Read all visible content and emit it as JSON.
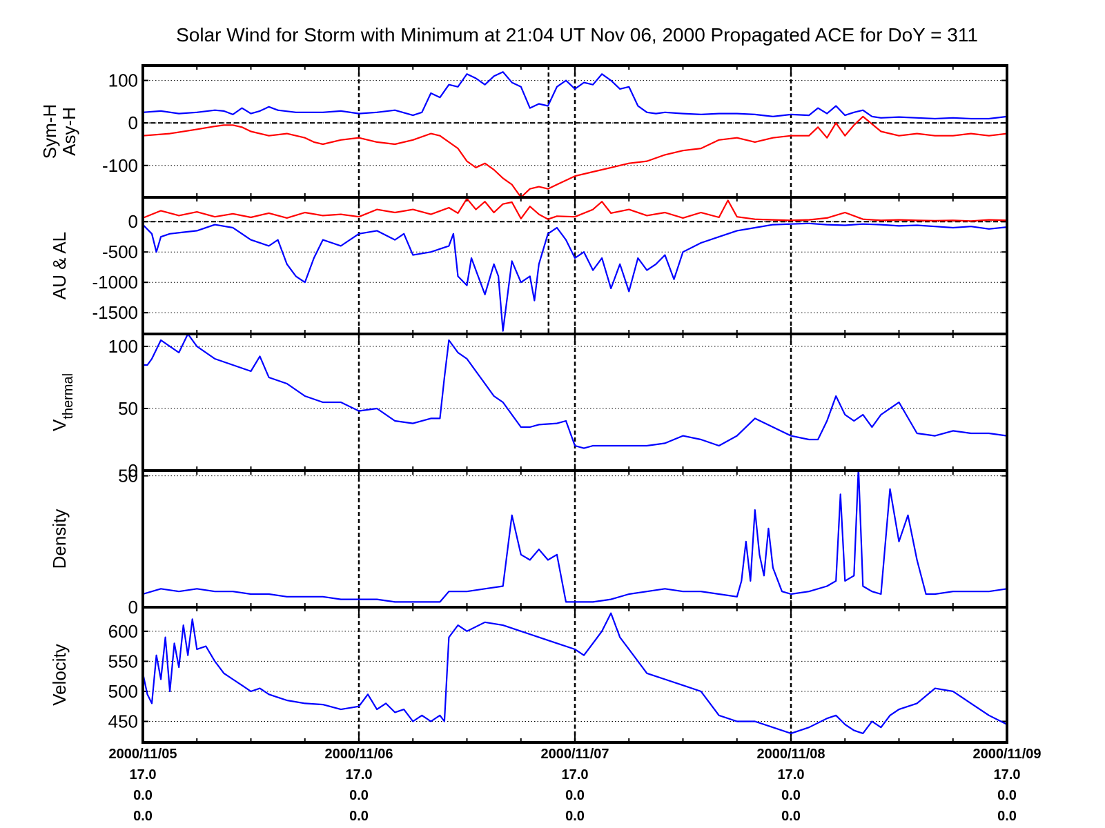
{
  "title": "Solar Wind for Storm with Minimum at 21:04 UT Nov 06, 2000  Propagated ACE for DoY = 311",
  "colors": {
    "blue": "#0000ff",
    "red": "#ff0000",
    "axis": "#000000"
  },
  "x_axis": {
    "range": [
      "2000/11/05 00:00",
      "2000/11/09 00:00"
    ],
    "tick_labels": [
      [
        "2000/11/05",
        "17.0",
        "0.0",
        "0.0"
      ],
      [
        "2000/11/06",
        "17.0",
        "0.0",
        "0.0"
      ],
      [
        "2000/11/07",
        "17.0",
        "0.0",
        "0.0"
      ],
      [
        "2000/11/08",
        "17.0",
        "0.0",
        "0.0"
      ],
      [
        "2000/11/09",
        "17.0",
        "0.0",
        "0.0"
      ]
    ],
    "storm_minimum_time": "2000/11/06 21:04"
  },
  "chart_data": [
    {
      "type": "line",
      "ylabel": [
        "Sym-H",
        "Asy-H"
      ],
      "ylim": [
        -175,
        135
      ],
      "yticks": [
        100,
        0,
        -100
      ],
      "ytick_labels": [
        "100",
        "0",
        "-100"
      ],
      "zero_line": true,
      "storm_marker": true,
      "x_unit": "hours since 2000/11/05 00:00",
      "series": [
        {
          "color": "#0000ff",
          "x": [
            0,
            2,
            4,
            6,
            8,
            9,
            10,
            11,
            12,
            13,
            14,
            15,
            17,
            20,
            22,
            24,
            26,
            28,
            30,
            31,
            32,
            33,
            34,
            35,
            36,
            37,
            38,
            39,
            40,
            41,
            42,
            43,
            44,
            45,
            46,
            47,
            48,
            49,
            50,
            51,
            52,
            53,
            54,
            55,
            56,
            57,
            58,
            60,
            62,
            64,
            66,
            68,
            70,
            72,
            74,
            75,
            76,
            77,
            78,
            79,
            80,
            81,
            82,
            84,
            86,
            88,
            90,
            92,
            94,
            96
          ],
          "values": [
            25,
            28,
            22,
            25,
            30,
            28,
            20,
            35,
            22,
            28,
            38,
            30,
            25,
            25,
            28,
            22,
            25,
            30,
            18,
            25,
            70,
            60,
            90,
            85,
            115,
            105,
            90,
            110,
            120,
            95,
            85,
            35,
            45,
            40,
            85,
            100,
            80,
            95,
            90,
            115,
            100,
            80,
            85,
            40,
            25,
            22,
            25,
            22,
            20,
            22,
            22,
            20,
            15,
            20,
            18,
            35,
            22,
            40,
            18,
            25,
            30,
            15,
            12,
            14,
            12,
            10,
            12,
            10,
            10,
            15
          ]
        },
        {
          "color": "#ff0000",
          "x": [
            0,
            3,
            6,
            8,
            9,
            10,
            11,
            12,
            14,
            16,
            18,
            19,
            20,
            22,
            24,
            26,
            28,
            30,
            32,
            33,
            34,
            35,
            36,
            37,
            38,
            39,
            40,
            41,
            42,
            43,
            44,
            45,
            46,
            48,
            50,
            52,
            54,
            56,
            58,
            60,
            62,
            64,
            66,
            68,
            70,
            72,
            74,
            75,
            76,
            77,
            78,
            79,
            80,
            82,
            84,
            86,
            88,
            90,
            92,
            94,
            96
          ],
          "values": [
            -30,
            -25,
            -15,
            -8,
            -5,
            -5,
            -10,
            -20,
            -30,
            -25,
            -35,
            -45,
            -50,
            -40,
            -35,
            -45,
            -50,
            -40,
            -25,
            -30,
            -45,
            -60,
            -90,
            -105,
            -95,
            -110,
            -130,
            -145,
            -175,
            -155,
            -150,
            -155,
            -145,
            -125,
            -115,
            -105,
            -95,
            -90,
            -75,
            -65,
            -60,
            -40,
            -35,
            -45,
            -35,
            -30,
            -30,
            -10,
            -35,
            0,
            -30,
            -5,
            15,
            -20,
            -30,
            -25,
            -30,
            -30,
            -25,
            -30,
            -25
          ]
        }
      ]
    },
    {
      "type": "line",
      "ylabel": [
        "AU & AL"
      ],
      "ylim": [
        -1850,
        400
      ],
      "yticks": [
        0,
        -500,
        -1000,
        -1500
      ],
      "ytick_labels": [
        "0",
        "-500",
        "-1000",
        "-1500"
      ],
      "zero_line": true,
      "storm_marker": true,
      "x_unit": "hours since 2000/11/05 00:00",
      "series": [
        {
          "color": "#ff0000",
          "x": [
            0,
            2,
            4,
            6,
            8,
            10,
            12,
            14,
            16,
            18,
            20,
            22,
            24,
            26,
            28,
            30,
            32,
            34,
            35,
            36,
            37,
            38,
            39,
            40,
            41,
            42,
            43,
            44,
            45,
            46,
            48,
            50,
            51,
            52,
            54,
            56,
            58,
            60,
            62,
            64,
            65,
            66,
            68,
            70,
            72,
            74,
            76,
            78,
            80,
            82,
            84,
            86,
            88,
            90,
            92,
            94,
            96
          ],
          "values": [
            60,
            180,
            100,
            160,
            80,
            130,
            70,
            140,
            60,
            150,
            100,
            120,
            80,
            200,
            150,
            200,
            120,
            230,
            140,
            380,
            200,
            330,
            150,
            290,
            320,
            50,
            250,
            120,
            40,
            90,
            80,
            200,
            330,
            140,
            200,
            100,
            150,
            60,
            150,
            70,
            350,
            80,
            40,
            30,
            20,
            30,
            60,
            150,
            40,
            20,
            30,
            20,
            15,
            20,
            10,
            30,
            20
          ]
        },
        {
          "color": "#0000ff",
          "x": [
            0,
            1,
            1.5,
            2,
            3,
            6,
            8,
            10,
            11,
            12,
            14,
            15,
            16,
            17,
            18,
            19,
            20,
            21,
            22,
            24,
            26,
            28,
            29,
            30,
            32,
            34,
            34.5,
            35,
            36,
            36.5,
            37,
            38,
            39,
            39.5,
            40,
            41,
            42,
            43,
            43.5,
            44,
            45,
            46,
            47,
            48,
            49,
            50,
            51,
            52,
            53,
            54,
            55,
            56,
            57,
            58,
            59,
            60,
            62,
            64,
            66,
            68,
            70,
            72,
            74,
            76,
            78,
            80,
            82,
            84,
            86,
            88,
            90,
            92,
            94,
            96
          ],
          "values": [
            -50,
            -200,
            -500,
            -250,
            -200,
            -150,
            -50,
            -100,
            -200,
            -300,
            -400,
            -300,
            -700,
            -900,
            -1000,
            -600,
            -300,
            -350,
            -400,
            -200,
            -150,
            -300,
            -200,
            -550,
            -500,
            -400,
            -200,
            -900,
            -1050,
            -600,
            -800,
            -1200,
            -700,
            -900,
            -1800,
            -650,
            -1000,
            -900,
            -1300,
            -700,
            -200,
            -100,
            -300,
            -600,
            -500,
            -800,
            -600,
            -1100,
            -700,
            -1150,
            -600,
            -800,
            -700,
            -550,
            -950,
            -500,
            -350,
            -250,
            -150,
            -100,
            -50,
            -40,
            -30,
            -50,
            -60,
            -40,
            -50,
            -70,
            -60,
            -80,
            -100,
            -80,
            -120,
            -90
          ]
        }
      ]
    },
    {
      "type": "line",
      "ylabel": [
        "V",
        "thermal"
      ],
      "ylim": [
        0,
        110
      ],
      "yticks": [
        100,
        50,
        0
      ],
      "ytick_labels": [
        "100",
        "50",
        "0"
      ],
      "zero_line": false,
      "storm_marker": false,
      "x_unit": "hours since 2000/11/05 00:00",
      "series": [
        {
          "color": "#0000ff",
          "x": [
            0,
            0.5,
            1,
            2,
            3,
            4,
            5,
            6,
            7,
            8,
            10,
            12,
            13,
            14,
            16,
            18,
            20,
            22,
            24,
            26,
            28,
            30,
            32,
            33,
            33.5,
            34,
            35,
            36,
            37,
            38,
            39,
            40,
            41,
            42,
            43,
            44,
            46,
            47,
            48,
            49,
            50,
            52,
            54,
            56,
            58,
            60,
            62,
            64,
            66,
            68,
            70,
            72,
            74,
            75,
            76,
            77,
            78,
            79,
            80,
            81,
            82,
            84,
            86,
            88,
            90,
            92,
            94,
            96
          ],
          "values": [
            85,
            85,
            90,
            105,
            100,
            95,
            110,
            100,
            95,
            90,
            85,
            80,
            92,
            75,
            70,
            60,
            55,
            55,
            48,
            50,
            40,
            38,
            42,
            42,
            75,
            105,
            95,
            90,
            80,
            70,
            60,
            55,
            45,
            35,
            35,
            37,
            38,
            40,
            20,
            18,
            20,
            20,
            20,
            20,
            22,
            28,
            25,
            20,
            28,
            42,
            35,
            28,
            25,
            25,
            40,
            60,
            45,
            40,
            45,
            35,
            45,
            55,
            30,
            28,
            32,
            30,
            30,
            28
          ]
        }
      ]
    },
    {
      "type": "line",
      "ylabel": [
        "Density"
      ],
      "ylim": [
        0,
        52
      ],
      "yticks": [
        50,
        0
      ],
      "ytick_labels": [
        "50",
        "0"
      ],
      "zero_line": false,
      "storm_marker": false,
      "x_unit": "hours since 2000/11/05 00:00",
      "series": [
        {
          "color": "#0000ff",
          "x": [
            0,
            2,
            4,
            6,
            8,
            10,
            12,
            14,
            16,
            18,
            20,
            22,
            24,
            26,
            28,
            30,
            32,
            33,
            34,
            36,
            38,
            40,
            41,
            42,
            43,
            44,
            45,
            46,
            47,
            48,
            50,
            52,
            54,
            56,
            58,
            60,
            62,
            64,
            66,
            66.5,
            67,
            67.5,
            68,
            68.5,
            69,
            69.5,
            70,
            71,
            72,
            74,
            76,
            77,
            77.5,
            78,
            79,
            79.5,
            80,
            81,
            82,
            83,
            84,
            85,
            86,
            87,
            88,
            90,
            92,
            94,
            96
          ],
          "values": [
            5,
            7,
            6,
            7,
            6,
            6,
            5,
            5,
            4,
            4,
            4,
            3,
            3,
            3,
            2,
            2,
            2,
            2,
            6,
            6,
            7,
            8,
            35,
            20,
            18,
            22,
            18,
            20,
            2,
            2,
            2,
            3,
            5,
            6,
            7,
            6,
            6,
            5,
            4,
            10,
            25,
            10,
            37,
            20,
            12,
            30,
            15,
            6,
            5,
            6,
            8,
            10,
            43,
            10,
            12,
            53,
            8,
            6,
            5,
            45,
            25,
            35,
            18,
            5,
            5,
            6,
            6,
            6,
            7
          ]
        }
      ]
    },
    {
      "type": "line",
      "ylabel": [
        "Velocity"
      ],
      "ylim": [
        415,
        640
      ],
      "yticks": [
        600,
        550,
        500,
        450
      ],
      "ytick_labels": [
        "600",
        "550",
        "500",
        "450"
      ],
      "zero_line": false,
      "storm_marker": false,
      "x_unit": "hours since 2000/11/05 00:00",
      "series": [
        {
          "color": "#0000ff",
          "x": [
            0,
            0.5,
            1,
            1.5,
            2,
            2.5,
            3,
            3.5,
            4,
            4.5,
            5,
            5.5,
            6,
            7,
            8,
            9,
            10,
            11,
            12,
            13,
            14,
            15,
            16,
            18,
            20,
            22,
            24,
            25,
            26,
            27,
            28,
            29,
            30,
            31,
            32,
            33,
            33.5,
            34,
            35,
            36,
            38,
            40,
            42,
            44,
            46,
            48,
            49,
            50,
            51,
            52,
            53,
            54,
            55,
            56,
            57,
            58,
            60,
            62,
            64,
            66,
            68,
            70,
            72,
            74,
            76,
            77,
            78,
            79,
            80,
            81,
            82,
            83,
            84,
            86,
            88,
            90,
            92,
            94,
            96
          ],
          "values": [
            530,
            495,
            480,
            560,
            520,
            590,
            500,
            580,
            540,
            610,
            560,
            620,
            570,
            575,
            550,
            530,
            520,
            510,
            500,
            505,
            495,
            490,
            485,
            480,
            478,
            470,
            475,
            495,
            470,
            480,
            465,
            470,
            450,
            460,
            450,
            460,
            450,
            590,
            610,
            600,
            615,
            610,
            600,
            590,
            580,
            570,
            560,
            580,
            600,
            630,
            590,
            570,
            550,
            530,
            525,
            520,
            510,
            500,
            460,
            450,
            450,
            440,
            430,
            440,
            455,
            460,
            445,
            435,
            430,
            450,
            440,
            460,
            470,
            480,
            505,
            500,
            480,
            460,
            445
          ]
        }
      ]
    }
  ]
}
